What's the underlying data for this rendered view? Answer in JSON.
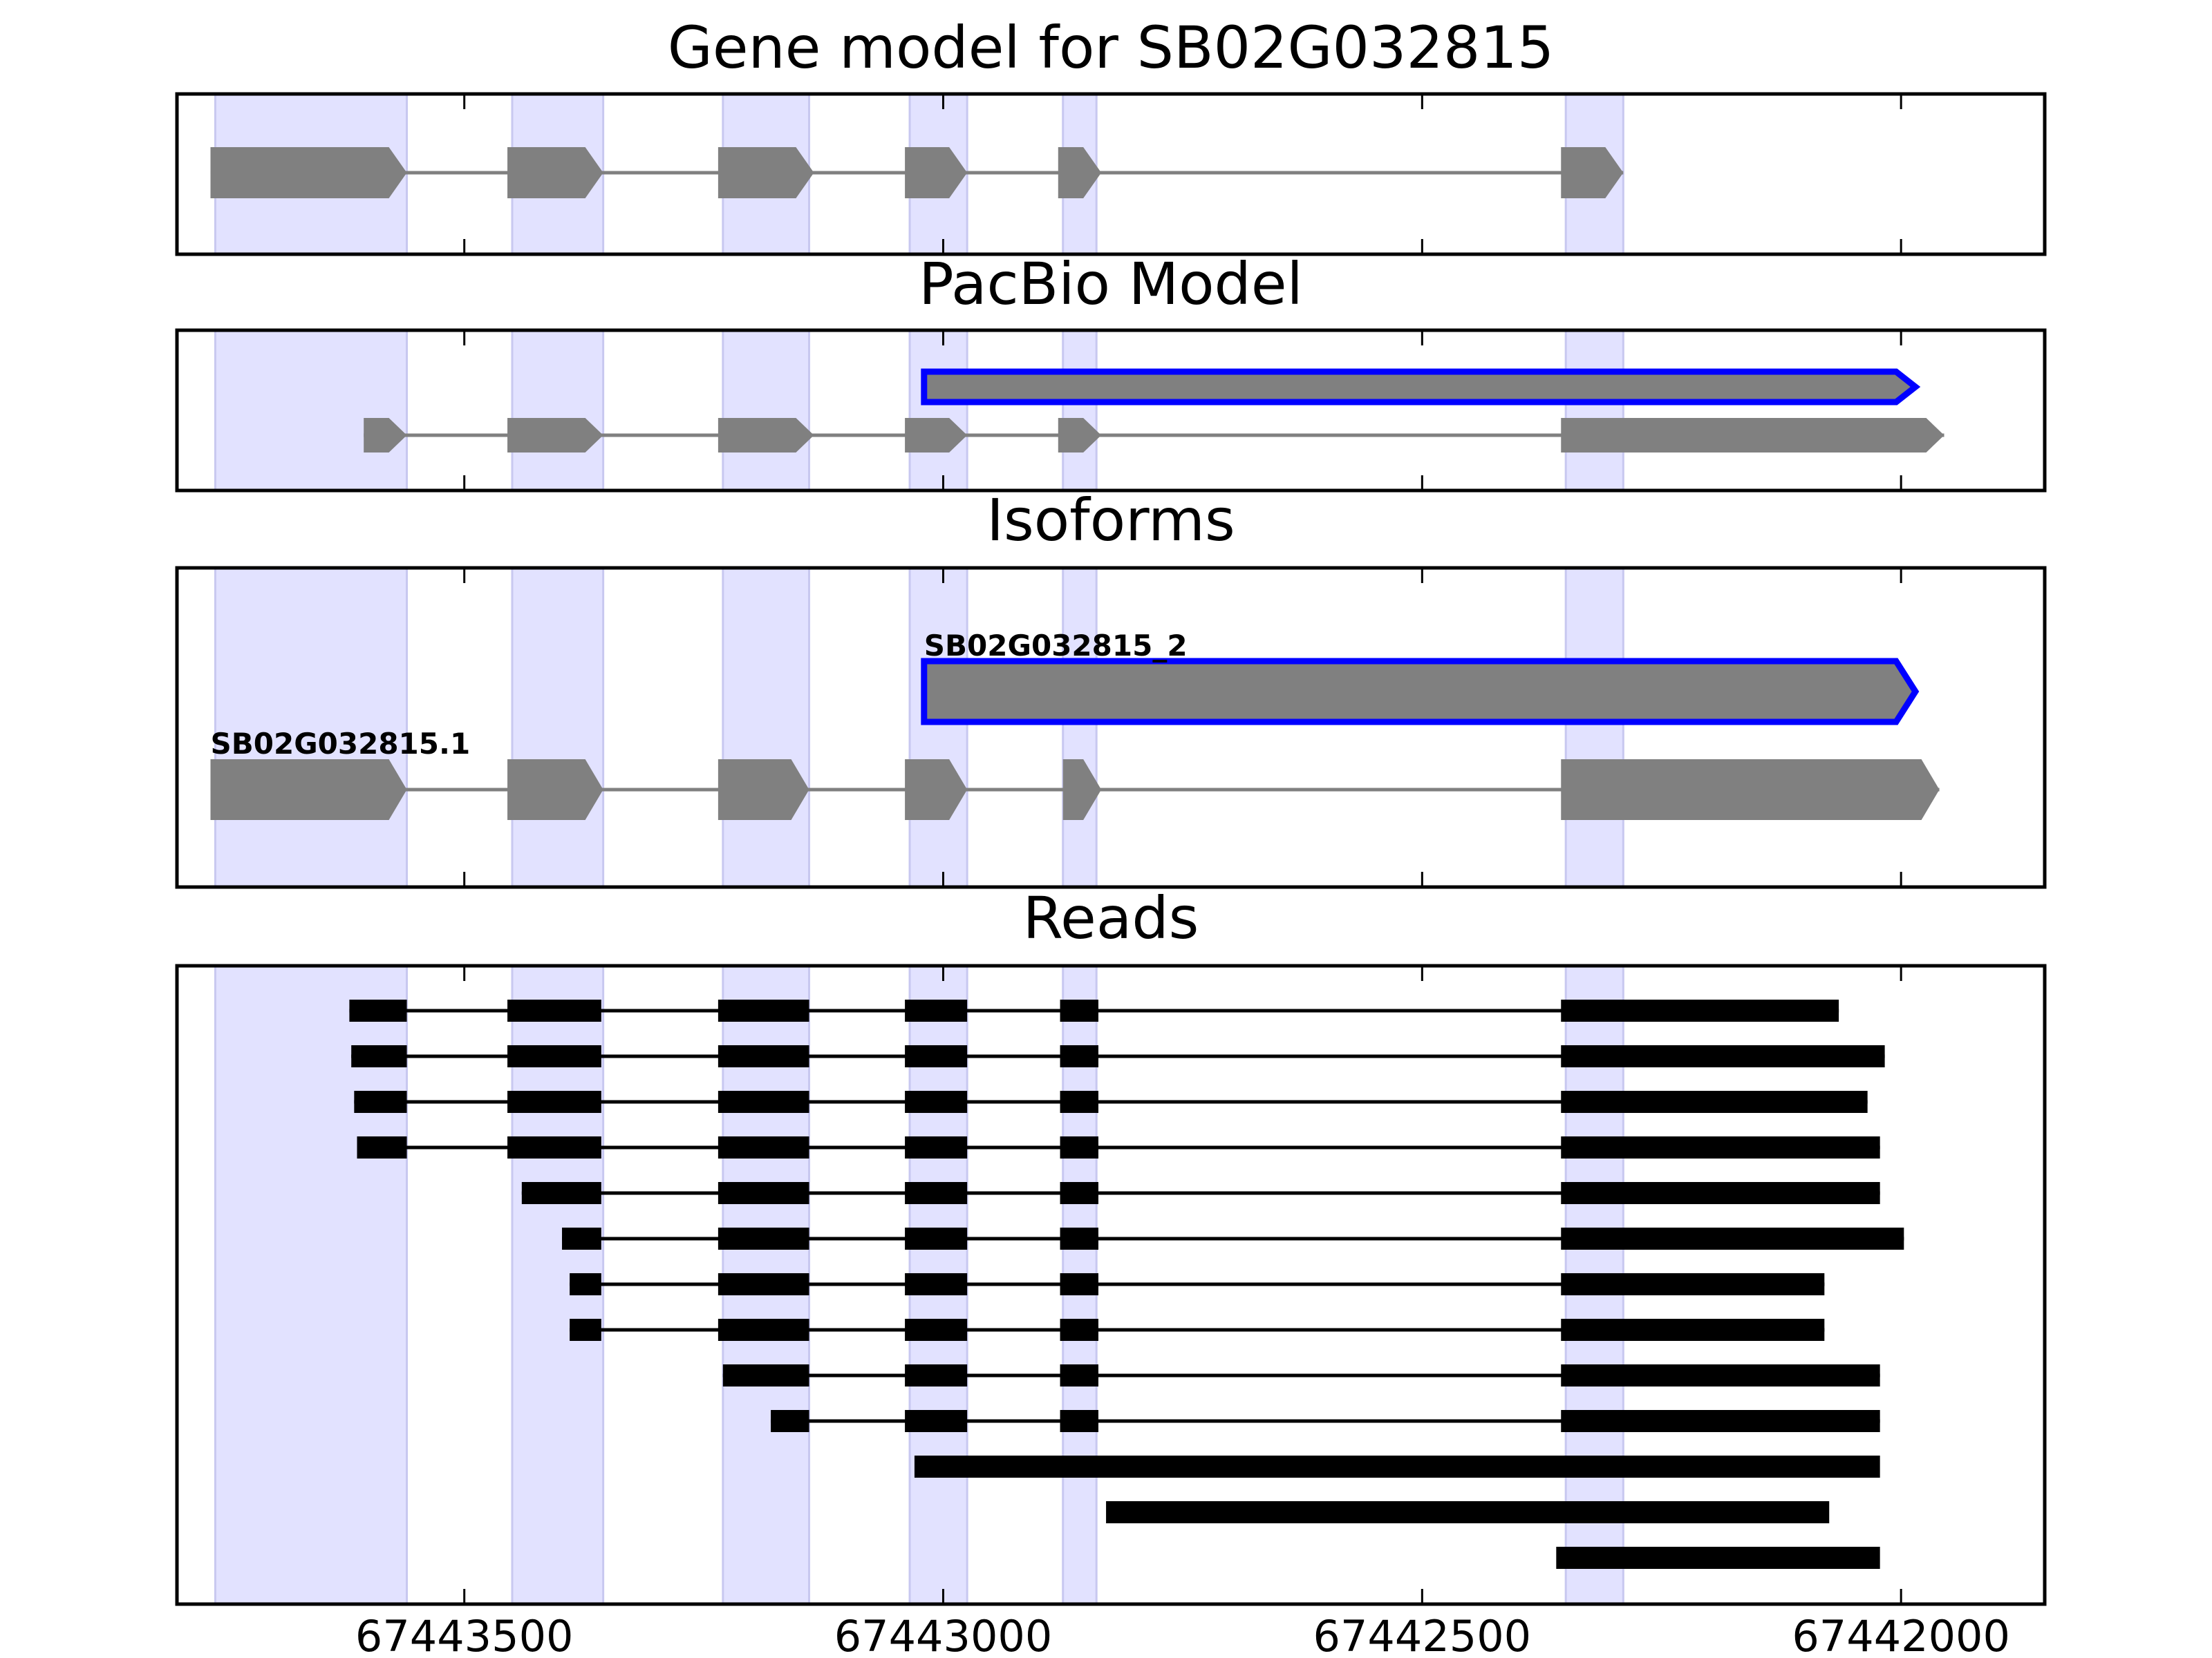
{
  "chart_data": {
    "type": "gene-model",
    "x_axis": {
      "range": [
        67443800,
        67441850
      ],
      "reversed": true,
      "tick_values": [
        67443500,
        67443000,
        67442500,
        67442000
      ],
      "tick_labels": [
        "67443500",
        "67443000",
        "67442500",
        "67442000"
      ]
    },
    "colors": {
      "exon_fill": "#808080",
      "intron_line": "#808080",
      "highlight_outline": "#0000ff",
      "exon_shade": "#e2e2ff",
      "read_color": "#000000"
    },
    "shaded_exons": [
      [
        67443760,
        67443560
      ],
      [
        67443450,
        67443355
      ],
      [
        67443230,
        67443140
      ],
      [
        67443035,
        67442975
      ],
      [
        67442875,
        67442840
      ],
      [
        67442350,
        67442290
      ]
    ],
    "panels": [
      {
        "title": "Gene model for SB02G032815",
        "tracks": [
          {
            "row": 0,
            "label": "",
            "highlight": false,
            "exons": [
              [
                67443765,
                67443560
              ],
              [
                67443455,
                67443355
              ],
              [
                67443235,
                67443135
              ],
              [
                67443040,
                67442975
              ],
              [
                67442880,
                67442835
              ],
              [
                67442355,
                67442290
              ]
            ]
          }
        ]
      },
      {
        "title": "PacBio Model",
        "tracks": [
          {
            "row": 0,
            "label": "",
            "highlight": true,
            "exons": [
              [
                67443020,
                67441985
              ]
            ]
          },
          {
            "row": 1,
            "label": "",
            "highlight": false,
            "exons": [
              [
                67443605,
                67443560
              ],
              [
                67443455,
                67443355
              ],
              [
                67443235,
                67443135
              ],
              [
                67443040,
                67442975
              ],
              [
                67442880,
                67442835
              ],
              [
                67442355,
                67441955
              ]
            ]
          }
        ]
      },
      {
        "title": "Isoforms",
        "tracks": [
          {
            "row": 0,
            "label": "SB02G032815_2",
            "highlight": true,
            "exons": [
              [
                67443020,
                67441985
              ]
            ]
          },
          {
            "row": 1,
            "label": "SB02G032815.1",
            "highlight": false,
            "exons": [
              [
                67443765,
                67443560
              ],
              [
                67443455,
                67443355
              ],
              [
                67443235,
                67443140
              ],
              [
                67443040,
                67442975
              ],
              [
                67442875,
                67442835
              ],
              [
                67442355,
                67441960
              ]
            ]
          }
        ]
      },
      {
        "title": "Reads",
        "reads": [
          [
            [
              67443620,
              67443560
            ],
            [
              67443455,
              67443357
            ],
            [
              67443235,
              67443140
            ],
            [
              67443040,
              67442975
            ],
            [
              67442878,
              67442838
            ],
            [
              67442355,
              67442065
            ]
          ],
          [
            [
              67443618,
              67443560
            ],
            [
              67443455,
              67443357
            ],
            [
              67443235,
              67443140
            ],
            [
              67443040,
              67442975
            ],
            [
              67442878,
              67442838
            ],
            [
              67442355,
              67442017
            ]
          ],
          [
            [
              67443615,
              67443560
            ],
            [
              67443455,
              67443357
            ],
            [
              67443235,
              67443140
            ],
            [
              67443040,
              67442975
            ],
            [
              67442878,
              67442838
            ],
            [
              67442355,
              67442035
            ]
          ],
          [
            [
              67443612,
              67443560
            ],
            [
              67443455,
              67443357
            ],
            [
              67443235,
              67443140
            ],
            [
              67443040,
              67442975
            ],
            [
              67442878,
              67442838
            ],
            [
              67442355,
              67442022
            ]
          ],
          [
            [
              67443440,
              67443357
            ],
            [
              67443235,
              67443140
            ],
            [
              67443040,
              67442975
            ],
            [
              67442878,
              67442838
            ],
            [
              67442355,
              67442022
            ]
          ],
          [
            [
              67443398,
              67443357
            ],
            [
              67443235,
              67443140
            ],
            [
              67443040,
              67442975
            ],
            [
              67442878,
              67442838
            ],
            [
              67442355,
              67441997
            ]
          ],
          [
            [
              67443390,
              67443357
            ],
            [
              67443235,
              67443140
            ],
            [
              67443040,
              67442975
            ],
            [
              67442878,
              67442838
            ],
            [
              67442355,
              67442080
            ]
          ],
          [
            [
              67443390,
              67443357
            ],
            [
              67443235,
              67443140
            ],
            [
              67443040,
              67442975
            ],
            [
              67442878,
              67442838
            ],
            [
              67442355,
              67442080
            ]
          ],
          [
            [
              67443230,
              67443140
            ],
            [
              67443040,
              67442975
            ],
            [
              67442878,
              67442838
            ],
            [
              67442355,
              67442022
            ]
          ],
          [
            [
              67443180,
              67443140
            ],
            [
              67443040,
              67442975
            ],
            [
              67442878,
              67442838
            ],
            [
              67442355,
              67442022
            ]
          ],
          [
            [
              67443030,
              67442022
            ]
          ],
          [
            [
              67442830,
              67442075
            ]
          ],
          [
            [
              67442360,
              67442022
            ]
          ]
        ]
      }
    ]
  }
}
